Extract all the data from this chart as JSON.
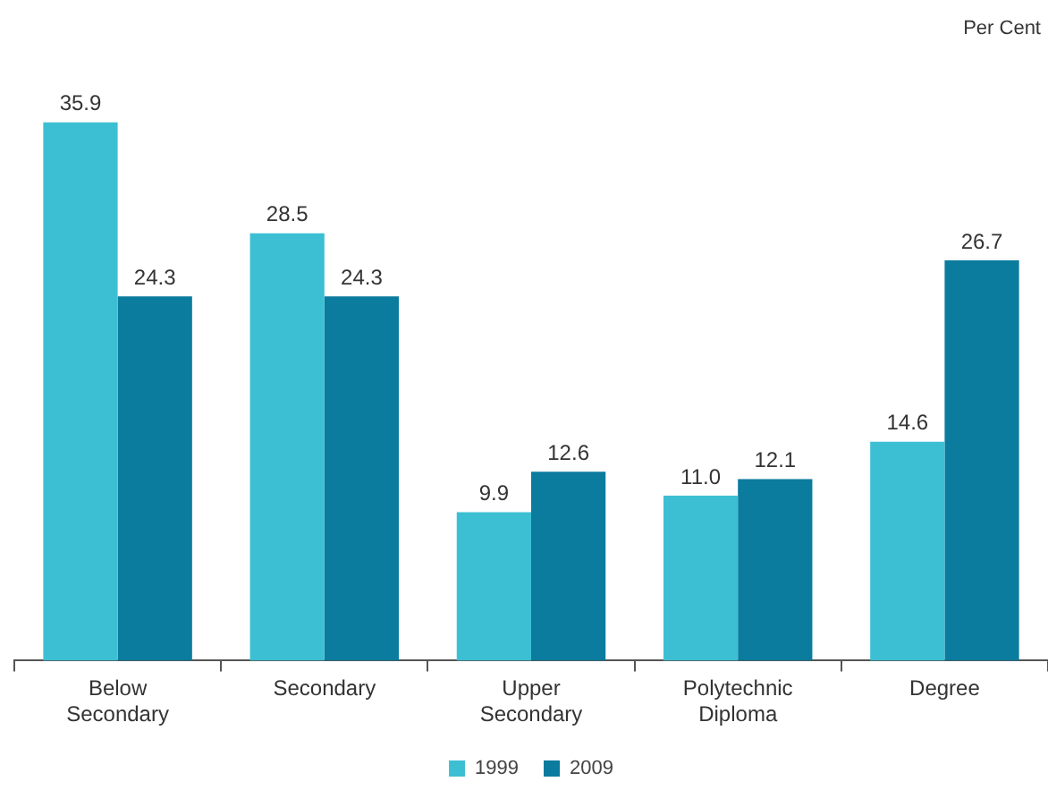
{
  "chart_data": {
    "type": "bar",
    "categories": [
      "Below Secondary",
      "Secondary",
      "Upper Secondary",
      "Polytechnic Diploma",
      "Degree"
    ],
    "series": [
      {
        "name": "1999",
        "color": "#3dbfd3",
        "values": [
          35.9,
          28.5,
          9.9,
          11.0,
          14.6
        ],
        "value_labels": [
          "35.9",
          "28.5",
          "9.9",
          "11.0",
          "14.6"
        ]
      },
      {
        "name": "2009",
        "color": "#0b7b9e",
        "values": [
          24.3,
          24.3,
          12.6,
          12.1,
          26.7
        ],
        "value_labels": [
          "24.3",
          "24.3",
          "12.6",
          "12.1",
          "26.7"
        ]
      }
    ],
    "legend": "bottom",
    "grid": false,
    "tick_labels": "x",
    "annotations": [
      "Per Cent"
    ]
  }
}
